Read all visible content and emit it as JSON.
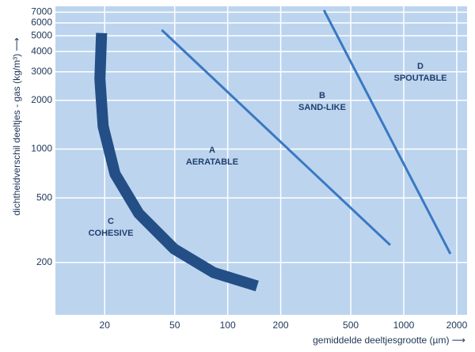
{
  "chart_data": {
    "type": "line",
    "x_label": "gemiddelde deeltjesgrootte (µm) ⟶",
    "y_label": "dichtheidverschil deeltjes - gas  (kg/m³) ⟶",
    "x_log": true,
    "y_log": true,
    "grid": true,
    "xlim": [
      10.5,
      2290
    ],
    "ylim": [
      95,
      7600
    ],
    "xticks": [
      20,
      50,
      100,
      200,
      500,
      1000,
      2000
    ],
    "yticks": [
      200,
      500,
      1000,
      2000,
      3000,
      4000,
      5000,
      6000,
      7000
    ],
    "series": [
      {
        "color": "#234f86",
        "x": [
          19.2,
          18.8,
          19.6,
          22.9,
          31.2,
          49.7,
          83.4,
          147
        ],
        "values": [
          5200,
          2710,
          1380,
          703,
          401,
          242,
          173,
          143
        ]
      },
      {
        "color": "#3a78c2",
        "x": [
          42.2,
          838
        ],
        "values": [
          5430,
          256
        ]
      },
      {
        "color": "#3a78c2",
        "x": [
          352,
          1840
        ],
        "values": [
          7200,
          226
        ]
      }
    ],
    "annotations": [
      {
        "letter": "C",
        "label": "COHESIVE"
      },
      {
        "letter": "A",
        "label": "AERATABLE"
      },
      {
        "letter": "B",
        "label": "SAND-LIKE"
      },
      {
        "letter": "D",
        "label": "SPOUTABLE"
      }
    ]
  }
}
